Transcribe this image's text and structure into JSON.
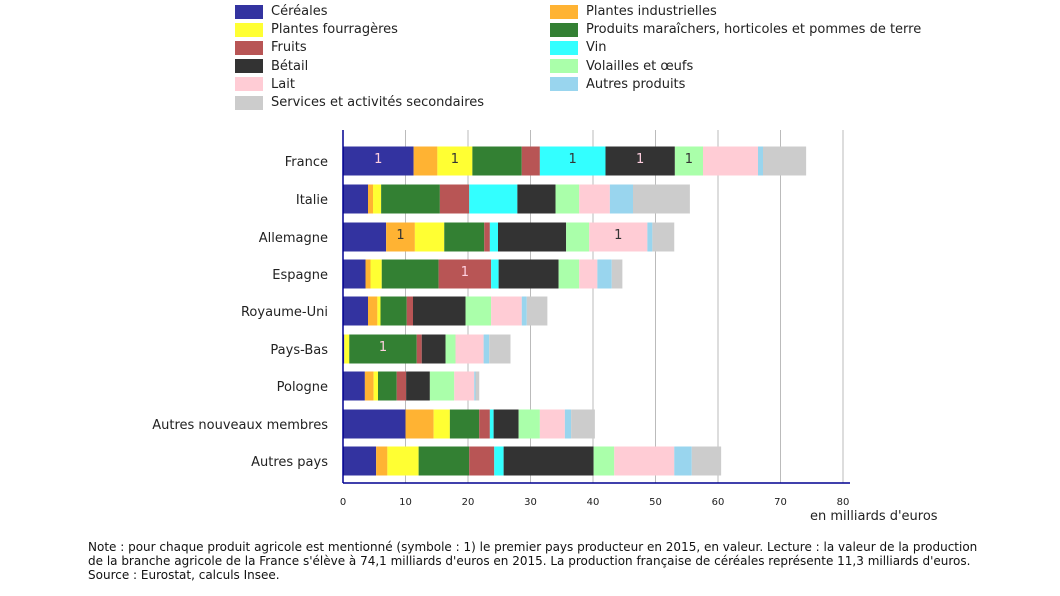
{
  "chart_data": {
    "type": "bar",
    "orientation": "horizontal",
    "stacked": true,
    "xlabel": "en milliards d'euros",
    "xlim": [
      0,
      80
    ],
    "xticks": [
      0,
      10,
      20,
      30,
      40,
      50,
      60,
      70,
      80
    ],
    "grid": true,
    "legend_position": "top",
    "categories": [
      "France",
      "Italie",
      "Allemagne",
      "Espagne",
      "Royaume-Uni",
      "Pays-Bas",
      "Pologne",
      "Autres nouveaux membres",
      "Autres pays"
    ],
    "series": [
      {
        "name": "Céréales",
        "color": "#3333a0",
        "values": [
          11.3,
          4.0,
          6.9,
          3.6,
          4.0,
          0.2,
          3.5,
          10.0,
          5.3
        ]
      },
      {
        "name": "Plantes industrielles",
        "color": "#ffb333",
        "values": [
          3.8,
          0.8,
          4.6,
          0.8,
          1.5,
          0,
          1.4,
          4.5,
          1.8
        ]
      },
      {
        "name": "Plantes fourragères",
        "color": "#ffff33",
        "values": [
          5.6,
          1.3,
          4.7,
          1.8,
          0.5,
          0.8,
          0.7,
          2.6,
          5.0
        ]
      },
      {
        "name": "Produits maraîchers, horticoles et pommes de terre",
        "color": "#338033",
        "values": [
          7.9,
          9.4,
          6.4,
          9.1,
          4.2,
          10.8,
          3.0,
          4.7,
          8.1
        ]
      },
      {
        "name": "Fruits",
        "color": "#b85555",
        "values": [
          2.9,
          4.7,
          0.9,
          8.4,
          1.0,
          0.8,
          1.5,
          1.7,
          4.0
        ]
      },
      {
        "name": "Vin",
        "color": "#33ffff",
        "values": [
          10.5,
          7.7,
          1.3,
          1.2,
          0,
          0,
          0,
          0.6,
          1.5
        ]
      },
      {
        "name": "Bétail",
        "color": "#333333",
        "values": [
          11.1,
          6.1,
          10.9,
          9.6,
          8.4,
          3.8,
          3.8,
          4.0,
          14.4
        ]
      },
      {
        "name": "Volailles et œufs",
        "color": "#aaffaa",
        "values": [
          4.5,
          3.8,
          3.7,
          3.3,
          4.1,
          1.6,
          3.9,
          3.4,
          3.3
        ]
      },
      {
        "name": "Lait",
        "color": "#ffccd5",
        "values": [
          8.8,
          4.9,
          9.3,
          2.9,
          4.9,
          4.5,
          3.2,
          4.0,
          9.6
        ]
      },
      {
        "name": "Autres produits",
        "color": "#99d5ee",
        "values": [
          0.8,
          3.7,
          0.8,
          2.3,
          0.8,
          0.9,
          0.2,
          1.0,
          2.8
        ]
      },
      {
        "name": "Services et activités secondaires",
        "color": "#cccccc",
        "values": [
          6.9,
          9.1,
          3.5,
          1.7,
          3.3,
          3.4,
          0.6,
          3.8,
          4.7
        ]
      }
    ],
    "annotations": [
      {
        "category": "France",
        "series": "Céréales",
        "text": "1"
      },
      {
        "category": "France",
        "series": "Plantes fourragères",
        "text": "1"
      },
      {
        "category": "France",
        "series": "Vin",
        "text": "1"
      },
      {
        "category": "France",
        "series": "Bétail",
        "text": "1"
      },
      {
        "category": "France",
        "series": "Volailles et œufs",
        "text": "1"
      },
      {
        "category": "Allemagne",
        "series": "Plantes industrielles",
        "text": "1"
      },
      {
        "category": "Allemagne",
        "series": "Lait",
        "text": "1"
      },
      {
        "category": "Espagne",
        "series": "Fruits",
        "text": "1"
      },
      {
        "category": "Pays-Bas",
        "series": "Produits maraîchers, horticoles et pommes de terre",
        "text": "1"
      }
    ],
    "legend_order": [
      "Céréales",
      "Plantes fourragères",
      "Fruits",
      "Bétail",
      "Lait",
      "Services et activités secondaires",
      "Plantes industrielles",
      "Produits maraîchers, horticoles et pommes de terre",
      "Vin",
      "Volailles et œufs",
      "Autres produits"
    ]
  },
  "note": "Note : pour chaque produit agricole est mentionné (symbole : 1) le premier pays producteur en 2015, en valeur. Lecture : la valeur de la production de la branche agricole de la France s'élève à 74,1 milliards d'euros en 2015. La production française de céréales représente 11,3 milliards d'euros. Source : Eurostat, calculs Insee."
}
